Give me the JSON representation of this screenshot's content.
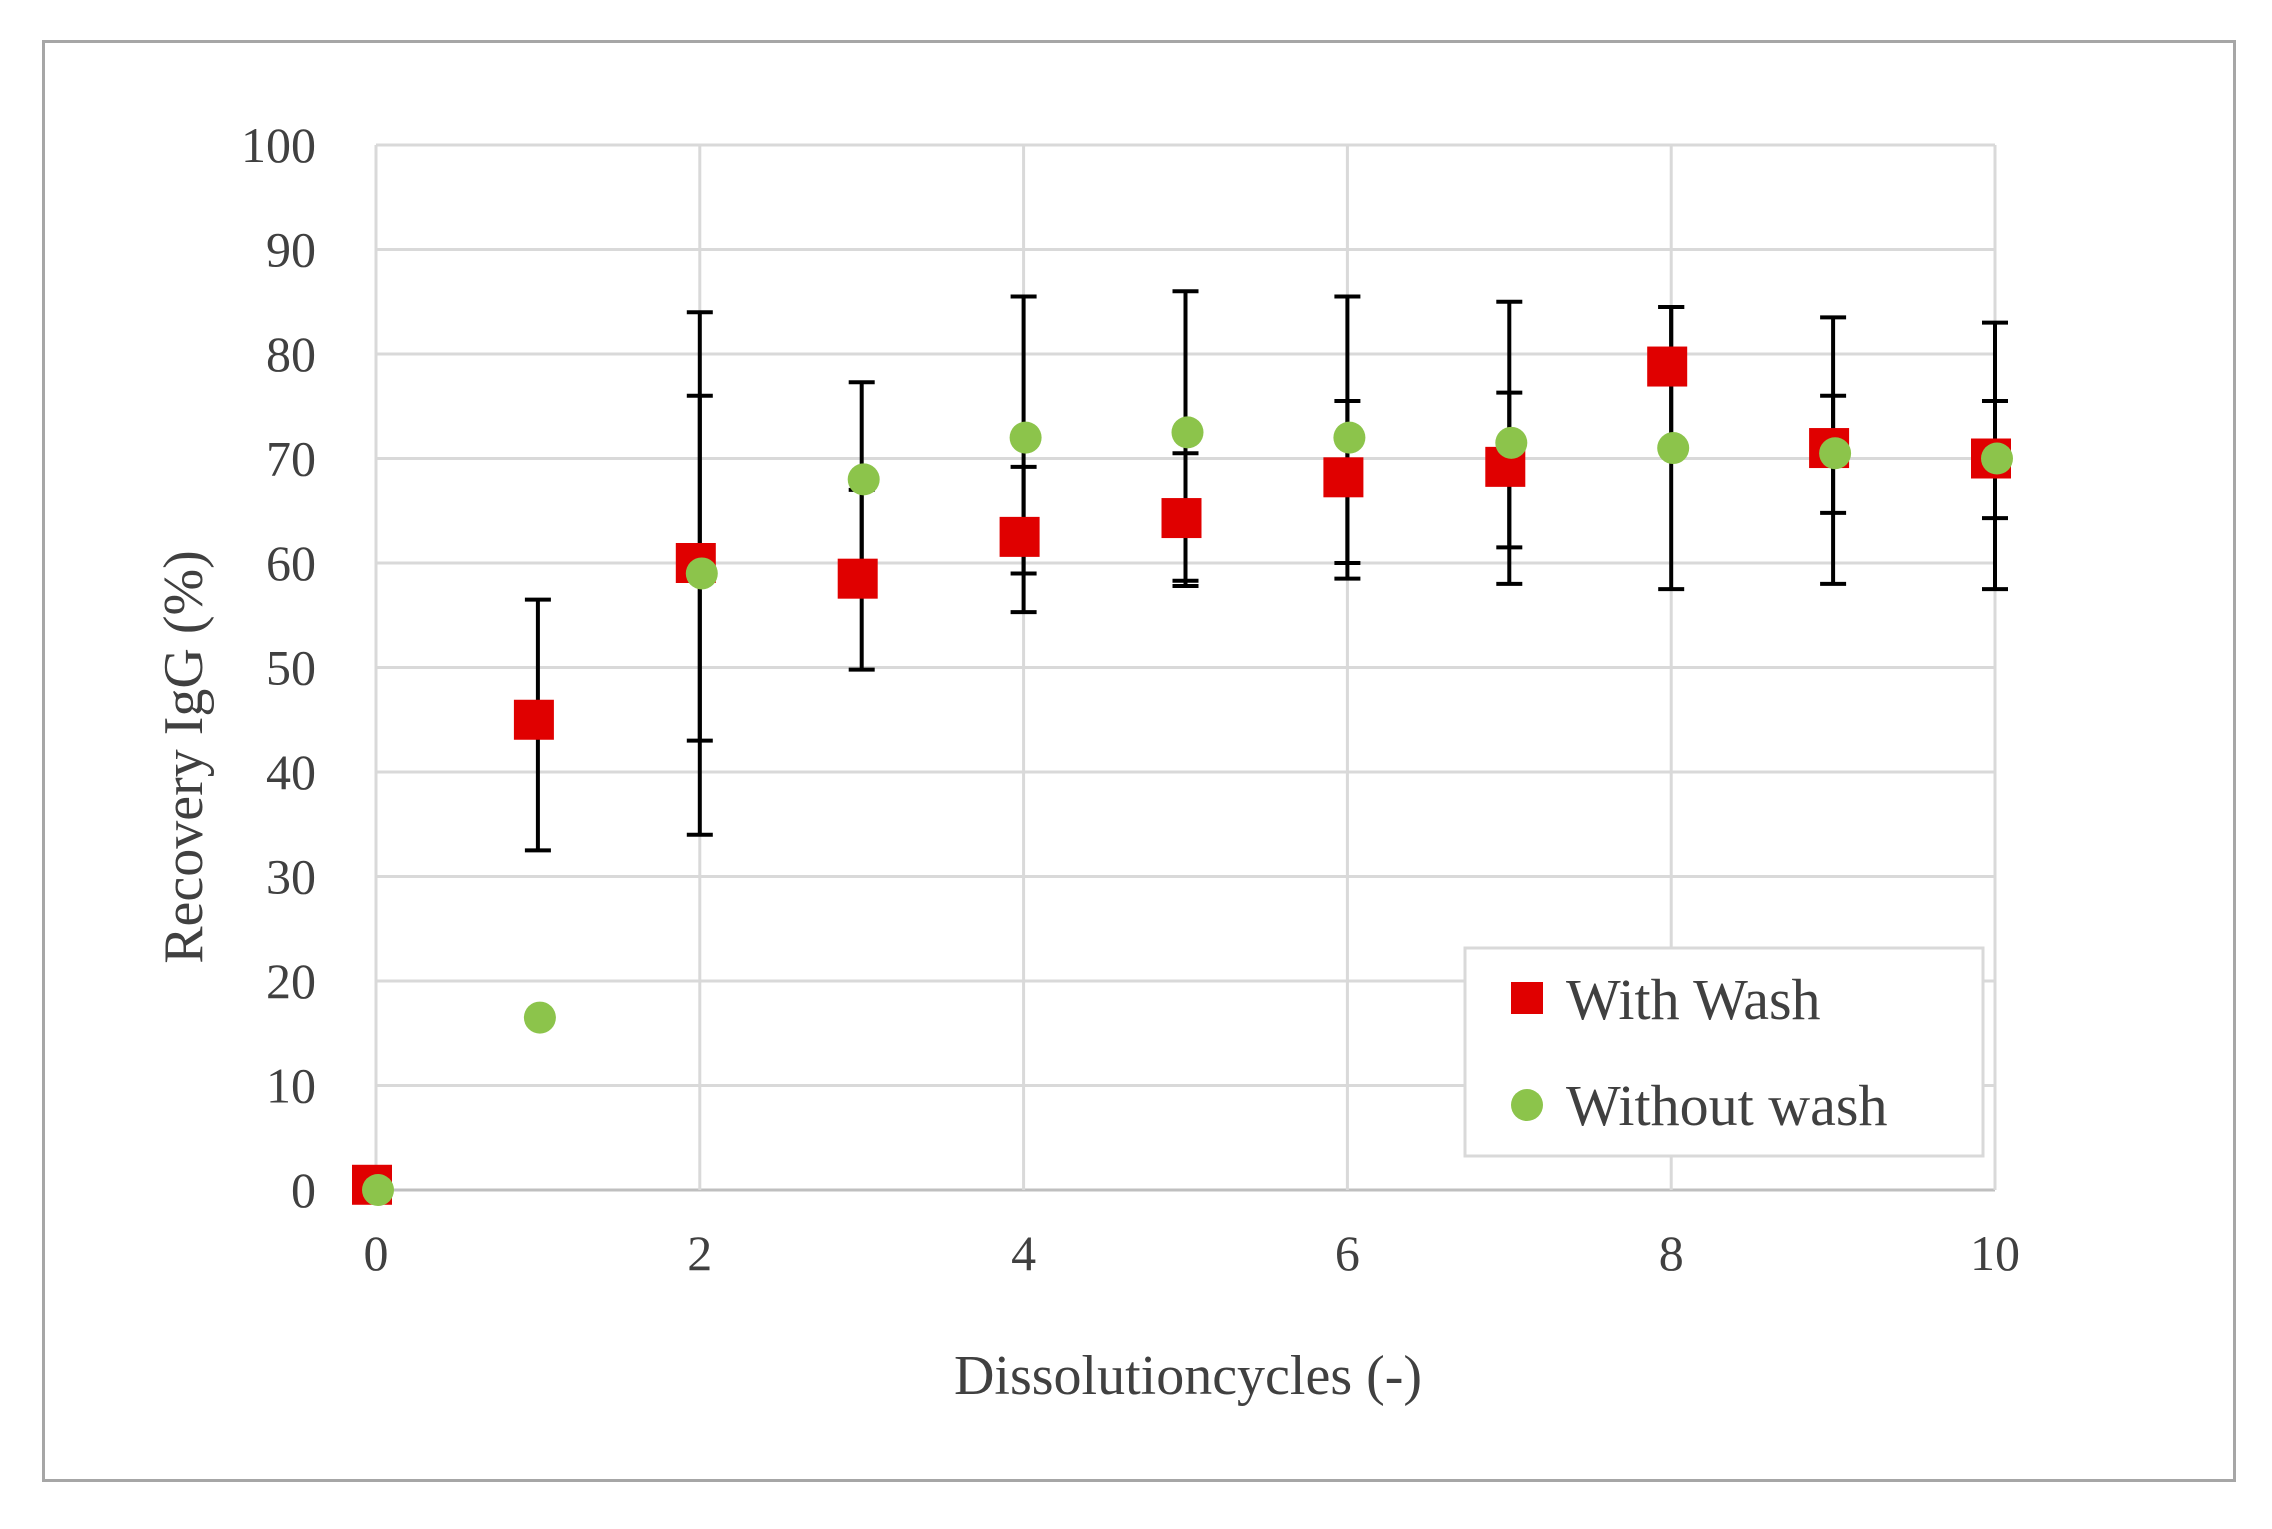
{
  "chart_data": {
    "type": "scatter",
    "title": "",
    "xlabel": "Dissolutioncycles (-)",
    "ylabel": "Recovery IgG  (%)",
    "xlim": [
      0,
      10
    ],
    "ylim": [
      0,
      100
    ],
    "x_ticks": [
      0,
      2,
      4,
      6,
      8,
      10
    ],
    "y_ticks": [
      0,
      10,
      20,
      30,
      40,
      50,
      60,
      70,
      80,
      90,
      100
    ],
    "grid": true,
    "legend_position": "bottom-right",
    "series": [
      {
        "name": "With Wash",
        "marker": "square",
        "color": "#e00000",
        "points": [
          {
            "x": 0,
            "y": 0.5,
            "err_low": null,
            "err_high": null
          },
          {
            "x": 1,
            "y": 45,
            "err_low": 32.5,
            "err_high": 56.5
          },
          {
            "x": 2,
            "y": 60,
            "err_low": 43,
            "err_high": 76
          },
          {
            "x": 3,
            "y": 58.5,
            "err_low": 49.8,
            "err_high": 67
          },
          {
            "x": 4,
            "y": 62.5,
            "err_low": 55.3,
            "err_high": 69.2
          },
          {
            "x": 5,
            "y": 64.3,
            "err_low": 58.3,
            "err_high": 70.5
          },
          {
            "x": 6,
            "y": 68.2,
            "err_low": 60,
            "err_high": 75.5
          },
          {
            "x": 7,
            "y": 69.2,
            "err_low": 61.5,
            "err_high": 76.3
          },
          {
            "x": 8,
            "y": 78.8,
            "err_low": 71,
            "err_high": 84.5
          },
          {
            "x": 9,
            "y": 71,
            "err_low": 64.8,
            "err_high": 76
          },
          {
            "x": 10,
            "y": 70,
            "err_low": 64.3,
            "err_high": 75.5
          }
        ]
      },
      {
        "name": "Without wash",
        "marker": "circle",
        "color": "#8cc44b",
        "points": [
          {
            "x": 0,
            "y": 0,
            "err_low": null,
            "err_high": null
          },
          {
            "x": 1,
            "y": 16.5,
            "err_low": null,
            "err_high": null
          },
          {
            "x": 2,
            "y": 59,
            "err_low": 34,
            "err_high": 84
          },
          {
            "x": 3,
            "y": 68,
            "err_low": 59,
            "err_high": 77.3
          },
          {
            "x": 4,
            "y": 72,
            "err_low": 59,
            "err_high": 85.5
          },
          {
            "x": 5,
            "y": 72.5,
            "err_low": 57.8,
            "err_high": 86
          },
          {
            "x": 6,
            "y": 72,
            "err_low": 58.5,
            "err_high": 85.5
          },
          {
            "x": 7,
            "y": 71.5,
            "err_low": 58,
            "err_high": 85
          },
          {
            "x": 8,
            "y": 71,
            "err_low": 57.5,
            "err_high": 84.5
          },
          {
            "x": 9,
            "y": 70.5,
            "err_low": 58,
            "err_high": 83.5
          },
          {
            "x": 10,
            "y": 70,
            "err_low": 57.5,
            "err_high": 83
          }
        ]
      }
    ]
  },
  "legend": {
    "items": [
      {
        "label": "With Wash"
      },
      {
        "label": "Without wash"
      }
    ]
  }
}
